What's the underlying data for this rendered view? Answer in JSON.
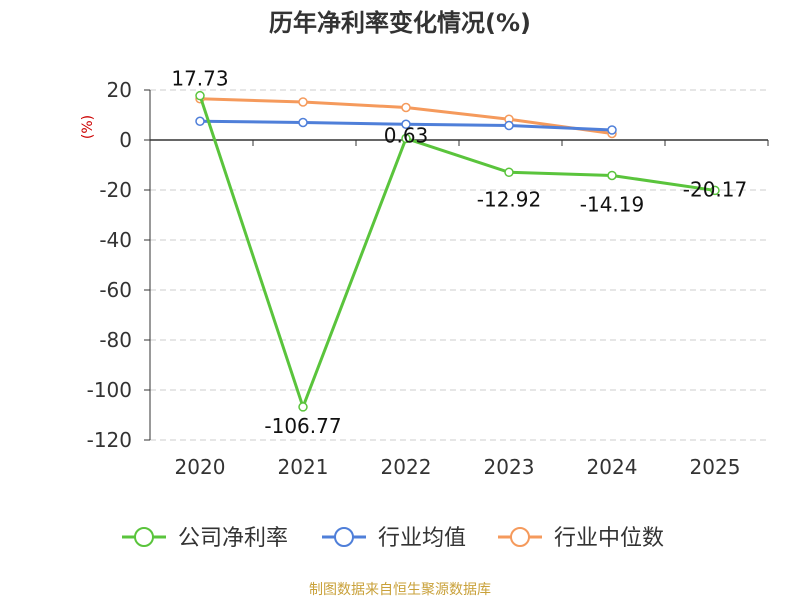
{
  "chart_data": {
    "type": "line",
    "title": "历年净利率变化情况(%)",
    "ylabel": "(%)",
    "xlabel": "",
    "categories": [
      "2020",
      "2021",
      "2022",
      "2023",
      "2024",
      "2025"
    ],
    "ylim": [
      -120,
      20
    ],
    "yticks": [
      20,
      0,
      -20,
      -40,
      -60,
      -80,
      -100,
      -120
    ],
    "grid": true,
    "legend_position": "bottom-center",
    "series": [
      {
        "name": "公司净利率",
        "color": "#5ac43c",
        "values": [
          17.73,
          -106.77,
          0.63,
          -12.92,
          -14.19,
          -20.17
        ],
        "labels": [
          "17.73",
          "-106.77",
          "0.63",
          "-12.92",
          "-14.19",
          "-20.17"
        ]
      },
      {
        "name": "行业均值",
        "color": "#4f7fd9",
        "values": [
          7.5,
          7.0,
          6.3,
          5.8,
          4.0,
          null
        ]
      },
      {
        "name": "行业中位数",
        "color": "#f59a5c",
        "values": [
          16.5,
          15.2,
          13.0,
          8.3,
          2.6,
          null
        ]
      }
    ],
    "source": "制图数据来自恒生聚源数据库"
  }
}
